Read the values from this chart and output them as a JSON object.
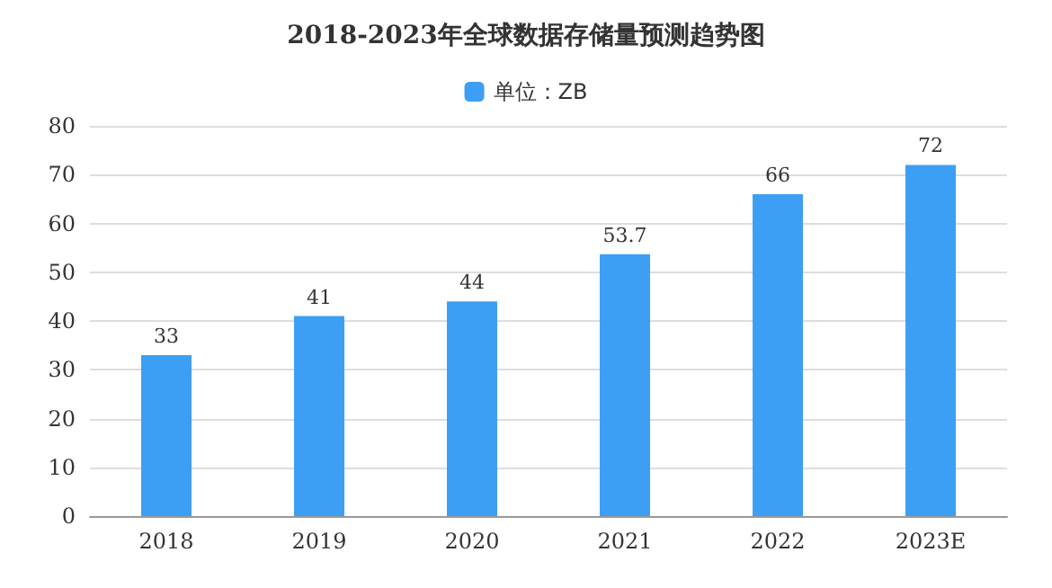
{
  "chart_data": {
    "type": "bar",
    "title": "2018-2023年全球数据存储量预测趋势图",
    "categories": [
      "2018",
      "2019",
      "2020",
      "2021",
      "2022",
      "2023E"
    ],
    "series": [
      {
        "name": "单位：ZB",
        "color": "#3d9ff3",
        "values": [
          33,
          41,
          44,
          53.7,
          66,
          72
        ]
      }
    ],
    "ylim": [
      0,
      80
    ],
    "yticks": [
      0,
      10,
      20,
      30,
      40,
      50,
      60,
      70,
      80
    ],
    "grid": "y",
    "legend": "top",
    "data_labels": true
  }
}
